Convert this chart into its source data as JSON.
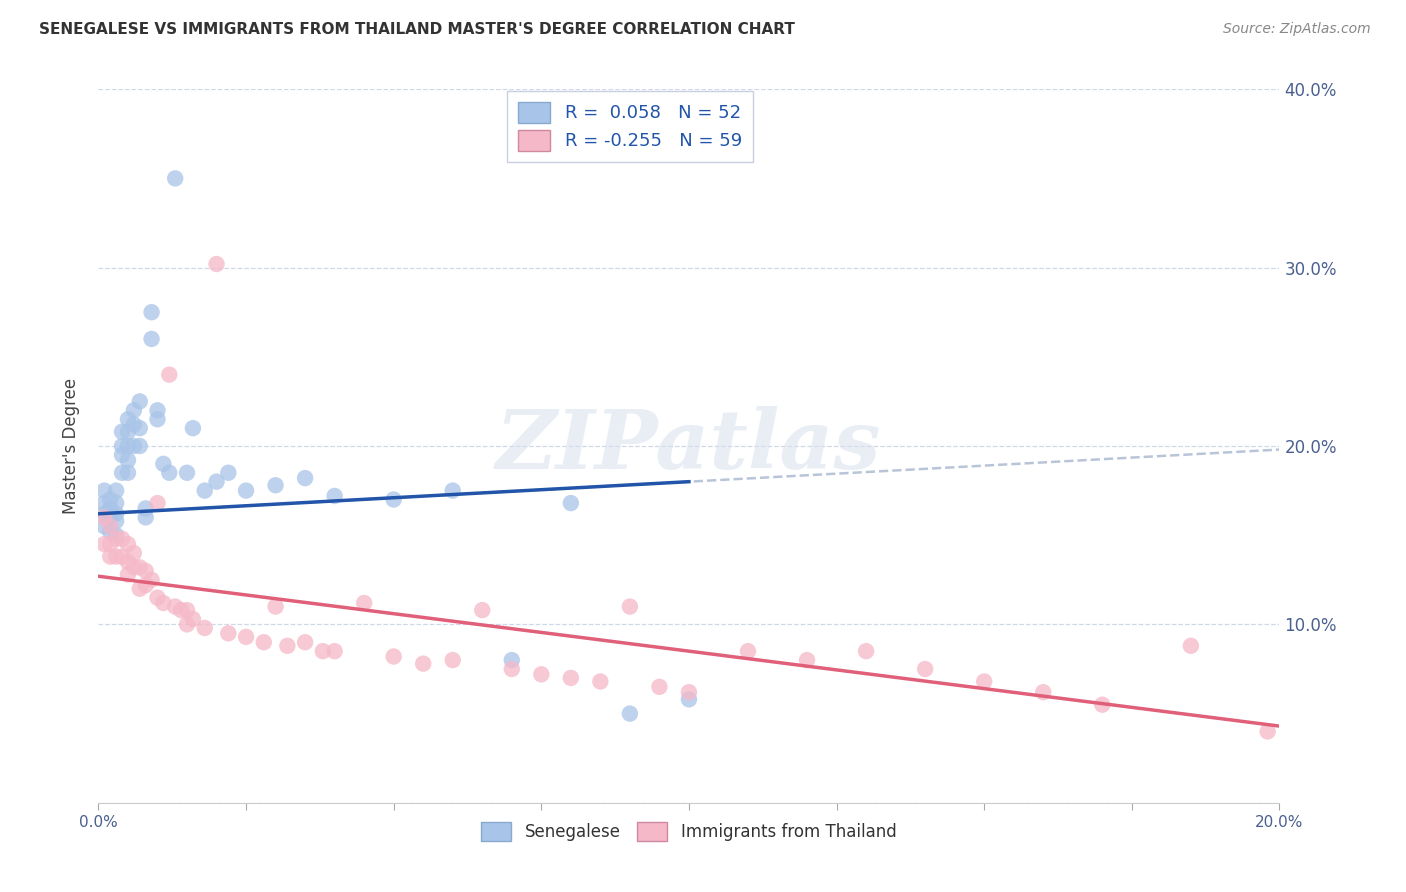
{
  "title": "SENEGALESE VS IMMIGRANTS FROM THAILAND MASTER'S DEGREE CORRELATION CHART",
  "source": "Source: ZipAtlas.com",
  "ylabel": "Master's Degree",
  "xlim": [
    0.0,
    0.2
  ],
  "ylim": [
    0.0,
    0.4
  ],
  "xticks": [
    0.0,
    0.025,
    0.05,
    0.075,
    0.1,
    0.125,
    0.15,
    0.175,
    0.2
  ],
  "xtick_labels": [
    "0.0%",
    "",
    "",
    "",
    "",
    "",
    "",
    "",
    "20.0%"
  ],
  "yticks": [
    0.0,
    0.1,
    0.2,
    0.3,
    0.4
  ],
  "ytick_labels_right": [
    "",
    "10.0%",
    "20.0%",
    "30.0%",
    "40.0%"
  ],
  "blue_color": "#a8c4e8",
  "blue_line_color": "#2255aa",
  "pink_color": "#f5b8c8",
  "pink_line_color": "#e0607a",
  "dashed_line_color": "#b8c4d8",
  "legend_label1": "Senegalese",
  "legend_label2": "Immigrants from Thailand",
  "watermark": "ZIPatlas",
  "blue_intercept": 0.162,
  "blue_slope": 0.18,
  "pink_intercept": 0.127,
  "pink_slope": -0.42,
  "dashed_intercept": 0.162,
  "dashed_slope": 0.18,
  "blue_scatter_x": [
    0.001,
    0.001,
    0.001,
    0.001,
    0.002,
    0.002,
    0.002,
    0.002,
    0.003,
    0.003,
    0.003,
    0.003,
    0.003,
    0.004,
    0.004,
    0.004,
    0.004,
    0.005,
    0.005,
    0.005,
    0.005,
    0.005,
    0.006,
    0.006,
    0.006,
    0.007,
    0.007,
    0.007,
    0.008,
    0.008,
    0.009,
    0.009,
    0.01,
    0.01,
    0.011,
    0.012,
    0.013,
    0.015,
    0.016,
    0.018,
    0.02,
    0.022,
    0.025,
    0.03,
    0.035,
    0.04,
    0.05,
    0.06,
    0.07,
    0.08,
    0.09,
    0.1
  ],
  "blue_scatter_y": [
    0.175,
    0.168,
    0.162,
    0.155,
    0.17,
    0.165,
    0.16,
    0.152,
    0.175,
    0.168,
    0.162,
    0.158,
    0.15,
    0.208,
    0.2,
    0.195,
    0.185,
    0.215,
    0.208,
    0.2,
    0.192,
    0.185,
    0.22,
    0.212,
    0.2,
    0.225,
    0.21,
    0.2,
    0.165,
    0.16,
    0.275,
    0.26,
    0.22,
    0.215,
    0.19,
    0.185,
    0.35,
    0.185,
    0.21,
    0.175,
    0.18,
    0.185,
    0.175,
    0.178,
    0.182,
    0.172,
    0.17,
    0.175,
    0.08,
    0.168,
    0.05,
    0.058
  ],
  "pink_scatter_x": [
    0.001,
    0.001,
    0.002,
    0.002,
    0.002,
    0.003,
    0.003,
    0.004,
    0.004,
    0.005,
    0.005,
    0.005,
    0.006,
    0.006,
    0.007,
    0.007,
    0.008,
    0.008,
    0.009,
    0.01,
    0.01,
    0.011,
    0.012,
    0.013,
    0.014,
    0.015,
    0.015,
    0.016,
    0.018,
    0.02,
    0.022,
    0.025,
    0.028,
    0.03,
    0.032,
    0.035,
    0.038,
    0.04,
    0.045,
    0.05,
    0.055,
    0.06,
    0.065,
    0.07,
    0.075,
    0.08,
    0.085,
    0.09,
    0.095,
    0.1,
    0.11,
    0.12,
    0.13,
    0.14,
    0.15,
    0.16,
    0.17,
    0.185,
    0.198
  ],
  "pink_scatter_y": [
    0.16,
    0.145,
    0.155,
    0.145,
    0.138,
    0.148,
    0.138,
    0.148,
    0.138,
    0.145,
    0.135,
    0.128,
    0.14,
    0.132,
    0.132,
    0.12,
    0.13,
    0.122,
    0.125,
    0.115,
    0.168,
    0.112,
    0.24,
    0.11,
    0.108,
    0.108,
    0.1,
    0.103,
    0.098,
    0.302,
    0.095,
    0.093,
    0.09,
    0.11,
    0.088,
    0.09,
    0.085,
    0.085,
    0.112,
    0.082,
    0.078,
    0.08,
    0.108,
    0.075,
    0.072,
    0.07,
    0.068,
    0.11,
    0.065,
    0.062,
    0.085,
    0.08,
    0.085,
    0.075,
    0.068,
    0.062,
    0.055,
    0.088,
    0.04
  ]
}
